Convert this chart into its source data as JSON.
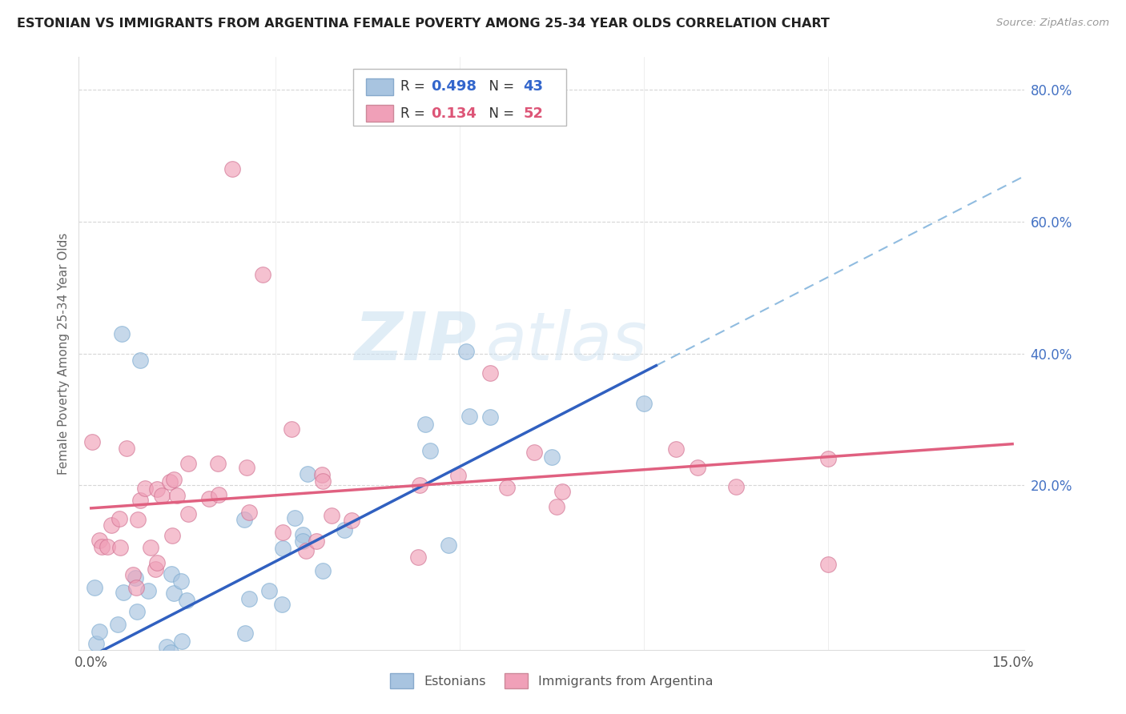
{
  "title": "ESTONIAN VS IMMIGRANTS FROM ARGENTINA FEMALE POVERTY AMONG 25-34 YEAR OLDS CORRELATION CHART",
  "source": "Source: ZipAtlas.com",
  "ylabel": "Female Poverty Among 25-34 Year Olds",
  "xmin": 0.0,
  "xmax": 0.15,
  "ymin": -0.05,
  "ymax": 0.85,
  "legend1_r": "0.498",
  "legend1_n": "43",
  "legend2_r": "0.134",
  "legend2_n": "52",
  "color_blue": "#a8c4e0",
  "color_pink": "#f0a0b8",
  "line_blue": "#3060c0",
  "line_pink": "#e06080",
  "line_dash_color": "#90bce0",
  "watermark_zip": "ZIP",
  "watermark_atlas": "atlas",
  "slope_est": 4.8,
  "intercept_est": -0.06,
  "slope_arg": 0.65,
  "intercept_arg": 0.165,
  "grid_color": "#cccccc",
  "grid_yticks": [
    0.2,
    0.4,
    0.6,
    0.8
  ],
  "right_tick_labels": [
    "20.0%",
    "40.0%",
    "60.0%",
    "80.0%"
  ]
}
